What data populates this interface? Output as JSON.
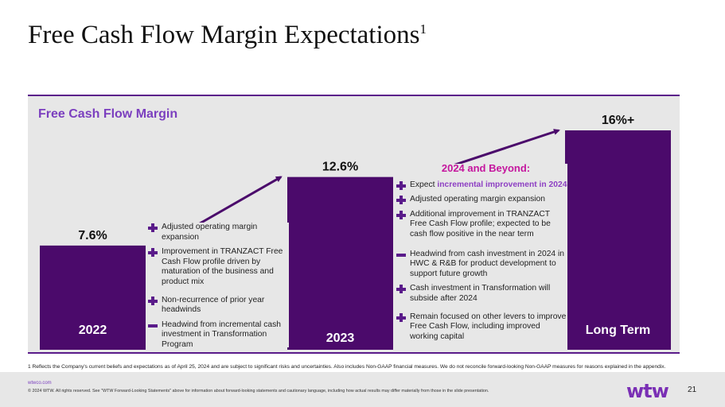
{
  "slide": {
    "title": "Free Cash Flow Margin Expectations",
    "title_superscript": "1",
    "page_number": "21"
  },
  "chart_data": {
    "type": "bar",
    "title": "Free Cash Flow Margin",
    "categories": [
      "2022",
      "2023",
      "Long Term"
    ],
    "values": [
      7.6,
      12.6,
      16
    ],
    "data_labels": [
      "7.6%",
      "12.6%",
      "16%+"
    ],
    "xlabel": "",
    "ylabel": "",
    "ylim": [
      0,
      16
    ],
    "grid": false,
    "legend": "none",
    "bar_color": "#4b0a6b",
    "annotations": [
      "arrow 2022 to 2023",
      "arrow 2023 to Long Term"
    ]
  },
  "notes_2023": [
    {
      "sign": "plus",
      "text": "Adjusted operating margin expansion"
    },
    {
      "sign": "plus",
      "text": "Improvement in TRANZACT Free Cash Flow profile driven by maturation of the business and product mix"
    },
    {
      "sign": "plus",
      "text": "Non-recurrence of prior year headwinds"
    },
    {
      "sign": "minus",
      "text": "Headwind from incremental cash investment in Transformation Program"
    }
  ],
  "beyond": {
    "title": "2024 and Beyond:",
    "first_prefix": "Expect ",
    "first_highlight": "incremental improvement in 2024",
    "notes": [
      {
        "sign": "plus",
        "text": "Adjusted operating margin expansion"
      },
      {
        "sign": "plus",
        "text": "Additional improvement in TRANZACT Free Cash Flow profile; expected to be cash flow positive in the near term"
      },
      {
        "sign": "minus",
        "text": "Headwind from cash investment in 2024 in HWC & R&B for product development to support future growth"
      },
      {
        "sign": "plus",
        "text": "Cash investment in Transformation will subside after 2024"
      },
      {
        "sign": "plus",
        "text": "Remain focused on other levers to improve Free Cash Flow, including improved working capital"
      }
    ]
  },
  "footnote": "1 Reflects the Company's current beliefs and expectations as of April 25, 2024 and are subject to significant risks and uncertainties. Also includes Non-GAAP financial measures. We do not reconcile forward-looking Non-GAAP measures for reasons explained in the appendix.",
  "footer": {
    "url": "wtwco.com",
    "copyright": "© 2024 WTW. All rights reserved. See \"WTW Forward-Looking Statements\" above for information about forward-looking statements and cautionary language, including how actual results may differ materially from those in the slide presentation.",
    "logo": "wtw"
  },
  "colors": {
    "accent_purple": "#4b0a6b",
    "panel_title": "#7b3fbf",
    "beyond_title": "#c5169e"
  }
}
